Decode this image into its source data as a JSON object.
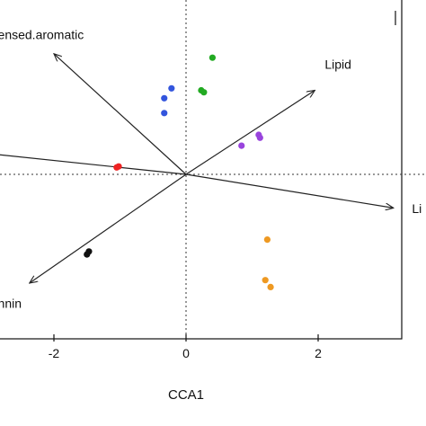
{
  "chart_data": {
    "type": "scatter",
    "title": "",
    "xlabel": "CCA1",
    "ylabel": "",
    "xlim": [
      -2.85,
      3.4
    ],
    "ylim": [
      -1.75,
      1.55
    ],
    "x_ticks": [
      -2,
      0,
      2
    ],
    "x_tick_labels": [
      "-2",
      "0",
      "2"
    ],
    "grid": false,
    "legend": "none",
    "reference_lines": {
      "x": 0,
      "y": 0,
      "style": "dotted"
    },
    "points": [
      {
        "x": 0.4,
        "y": 1.18,
        "color": "#22aa22"
      },
      {
        "x": 0.23,
        "y": 0.85,
        "color": "#22aa22"
      },
      {
        "x": 0.27,
        "y": 0.83,
        "color": "#22aa22"
      },
      {
        "x": -0.22,
        "y": 0.87,
        "color": "#3355dd"
      },
      {
        "x": -0.33,
        "y": 0.77,
        "color": "#3355dd"
      },
      {
        "x": -0.33,
        "y": 0.62,
        "color": "#3355dd"
      },
      {
        "x": 1.1,
        "y": 0.4,
        "color": "#9944dd"
      },
      {
        "x": 1.12,
        "y": 0.37,
        "color": "#9944dd"
      },
      {
        "x": 0.84,
        "y": 0.29,
        "color": "#9944dd"
      },
      {
        "x": -1.02,
        "y": 0.08,
        "color": "#ee2222"
      },
      {
        "x": -1.05,
        "y": 0.07,
        "color": "#ee2222"
      },
      {
        "x": 1.23,
        "y": -0.66,
        "color": "#ee9922"
      },
      {
        "x": 1.2,
        "y": -1.07,
        "color": "#ee9922"
      },
      {
        "x": 1.28,
        "y": -1.14,
        "color": "#ee9922"
      },
      {
        "x": -1.47,
        "y": -0.78,
        "color": "#111111"
      },
      {
        "x": -1.5,
        "y": -0.81,
        "color": "#111111"
      }
    ],
    "arrows": [
      {
        "label": "ensed.aromatic",
        "x": -2.0,
        "y": 1.22,
        "label_x": -2.85,
        "label_y": 1.37,
        "anchor": "start"
      },
      {
        "label": "Lipid",
        "x": 1.95,
        "y": 0.85,
        "label_x": 2.1,
        "label_y": 1.07,
        "anchor": "start"
      },
      {
        "label": "Li",
        "x": 3.14,
        "y": -0.34,
        "label_x": 3.42,
        "label_y": -0.39,
        "anchor": "start"
      },
      {
        "label": "nnin",
        "x": -2.37,
        "y": -1.1,
        "label_x": -2.85,
        "label_y": -1.35,
        "anchor": "start"
      },
      {
        "label": "",
        "x": -2.85,
        "y": 0.2,
        "label_x": -2.85,
        "label_y": 0.2,
        "anchor": "start"
      }
    ]
  }
}
